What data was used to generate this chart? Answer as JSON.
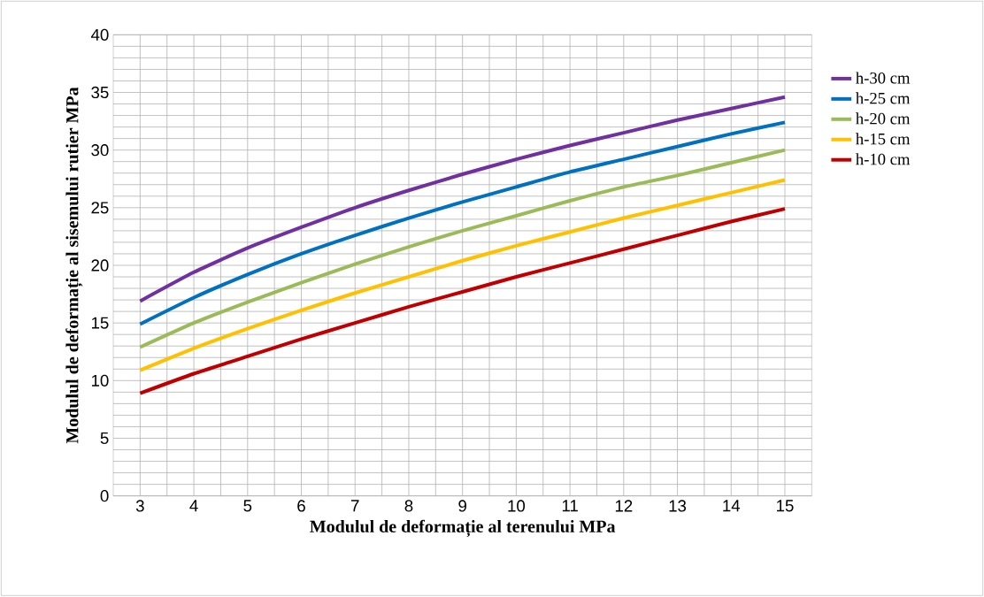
{
  "chart_data": {
    "type": "line",
    "xlabel": "Modulul de deformație al terenului MPa",
    "ylabel": "Modulul de deformație al sisemului rutier MPa",
    "categories": [
      "3",
      "4",
      "5",
      "6",
      "7",
      "8",
      "9",
      "10",
      "11",
      "12",
      "13",
      "14",
      "15"
    ],
    "ylim": [
      0,
      40
    ],
    "yticks": [
      0,
      5,
      10,
      15,
      20,
      25,
      30,
      35,
      40
    ],
    "grid": true,
    "legend": "right",
    "marker": "none",
    "line_style": "solid",
    "series": [
      {
        "name": "h-30 cm",
        "color": "#7030a0",
        "values": [
          16.9,
          19.4,
          21.5,
          23.3,
          25.0,
          26.5,
          27.9,
          29.2,
          30.4,
          31.5,
          32.6,
          33.6,
          34.6
        ]
      },
      {
        "name": "h-25 cm",
        "color": "#0070c0",
        "values": [
          14.9,
          17.2,
          19.2,
          21.0,
          22.6,
          24.1,
          25.5,
          26.8,
          28.1,
          29.2,
          30.3,
          31.4,
          32.4
        ]
      },
      {
        "name": "h-20 cm",
        "color": "#9bbb59",
        "values": [
          12.9,
          15.0,
          16.8,
          18.5,
          20.1,
          21.6,
          23.0,
          24.3,
          25.6,
          26.8,
          27.8,
          28.9,
          30.0
        ]
      },
      {
        "name": "h-15 cm",
        "color": "#ffc000",
        "values": [
          10.9,
          12.8,
          14.5,
          16.1,
          17.6,
          19.0,
          20.4,
          21.7,
          22.9,
          24.1,
          25.2,
          26.3,
          27.4
        ]
      },
      {
        "name": "h-10 cm",
        "color": "#c00000",
        "values": [
          8.9,
          10.6,
          12.1,
          13.6,
          15.0,
          16.4,
          17.7,
          19.0,
          20.2,
          21.4,
          22.6,
          23.8,
          24.9
        ]
      }
    ]
  }
}
